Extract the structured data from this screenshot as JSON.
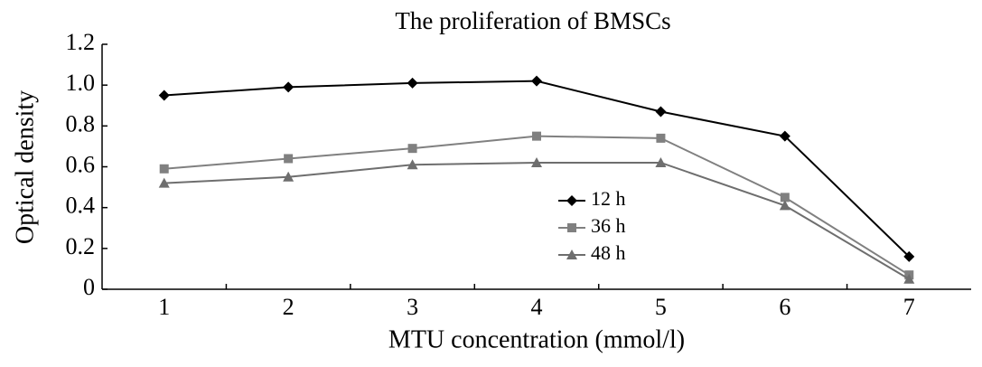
{
  "chart_data": {
    "type": "line",
    "title": "The proliferation of BMSCs",
    "x_label": "MTU concentration (mmol/l)",
    "y_label": "Optical density",
    "categories": [
      "1",
      "2",
      "3",
      "4",
      "5",
      "6",
      "7"
    ],
    "series": [
      {
        "name": "12 h",
        "color": "#000000",
        "marker": "diamond",
        "values": [
          0.95,
          0.99,
          1.01,
          1.02,
          0.87,
          0.75,
          0.16
        ]
      },
      {
        "name": "36 h",
        "color": "#808080",
        "marker": "square",
        "values": [
          0.59,
          0.64,
          0.69,
          0.75,
          0.74,
          0.45,
          0.07
        ]
      },
      {
        "name": "48 h",
        "color": "#6e6e6e",
        "marker": "triangle",
        "values": [
          0.52,
          0.55,
          0.61,
          0.62,
          0.62,
          0.41,
          0.05
        ]
      }
    ],
    "ylim": [
      0,
      1.2
    ],
    "yticks": [
      0,
      0.2,
      0.4,
      0.6,
      0.8,
      {
        "value": 1,
        "label": "1.0"
      },
      1.2
    ],
    "grid": false,
    "legend": "center"
  }
}
